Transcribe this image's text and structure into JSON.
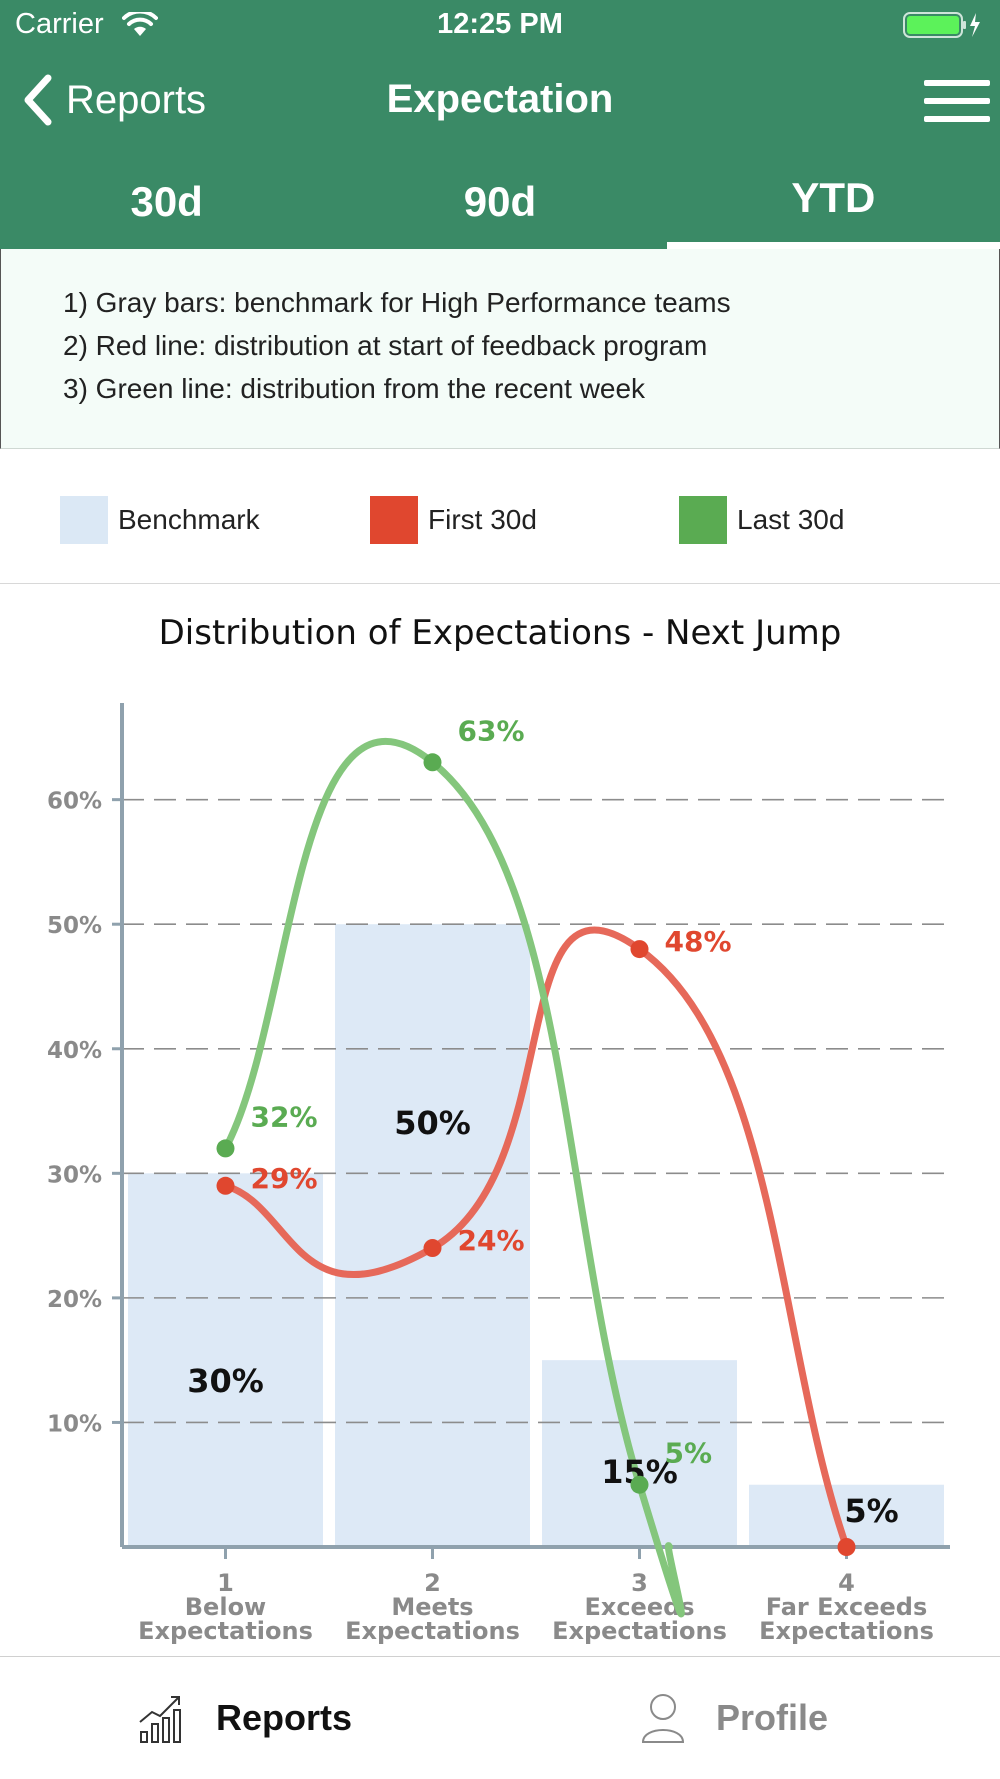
{
  "status_bar": {
    "carrier": "Carrier",
    "time": "12:25 PM"
  },
  "nav": {
    "back_label": "Reports",
    "title": "Expectation"
  },
  "tabs": [
    {
      "label": "30d",
      "active": false
    },
    {
      "label": "90d",
      "active": false
    },
    {
      "label": "YTD",
      "active": true
    }
  ],
  "info": {
    "lines": [
      "1) Gray bars: benchmark for High Performance teams",
      "2) Red line: distribution at start of feedback program",
      "3) Green line: distribution from the recent week"
    ]
  },
  "legend": [
    {
      "label": "Benchmark",
      "color": "#dbe8f5"
    },
    {
      "label": "First 30d",
      "color": "#e0472f"
    },
    {
      "label": "Last 30d",
      "color": "#5aab52"
    }
  ],
  "colors": {
    "header_green": "#3a8a66",
    "bar": "#dde9f6",
    "red_line": "#e6695a",
    "red_point": "#e0472f",
    "green_line": "#84c67c",
    "green_point": "#5aab52",
    "axis": "#8fa1ad"
  },
  "chart_data": {
    "type": "bar",
    "title": "Distribution of Expectations - Next Jump",
    "categories": [
      [
        "1",
        "Below",
        "Expectations"
      ],
      [
        "2",
        "Meets",
        "Expectations"
      ],
      [
        "3",
        "Exceeds",
        "Expectations"
      ],
      [
        "4",
        "Far Exceeds",
        "Expectations"
      ]
    ],
    "y_ticks": [
      "10%",
      "20%",
      "30%",
      "40%",
      "50%",
      "60%"
    ],
    "ylim": [
      0,
      0.68
    ],
    "grid": true,
    "bar_series": {
      "name": "Benchmark",
      "values": [
        0.3,
        0.5,
        0.15,
        0.05
      ],
      "labels": [
        "30%",
        "50%",
        "15%",
        "5%"
      ]
    },
    "line_series": [
      {
        "name": "First 30d",
        "values": [
          0.29,
          0.24,
          0.48,
          0
        ],
        "labels": [
          "29%",
          "24%",
          "48%",
          ""
        ]
      },
      {
        "name": "Last 30d",
        "values": [
          0.32,
          0.63,
          0.05,
          null
        ],
        "labels": [
          "32%",
          "63%",
          "5%",
          ""
        ]
      }
    ]
  },
  "bottom_tabs": [
    {
      "label": "Reports",
      "icon": "chart-icon",
      "active": true
    },
    {
      "label": "Profile",
      "icon": "person-icon",
      "active": false
    }
  ]
}
